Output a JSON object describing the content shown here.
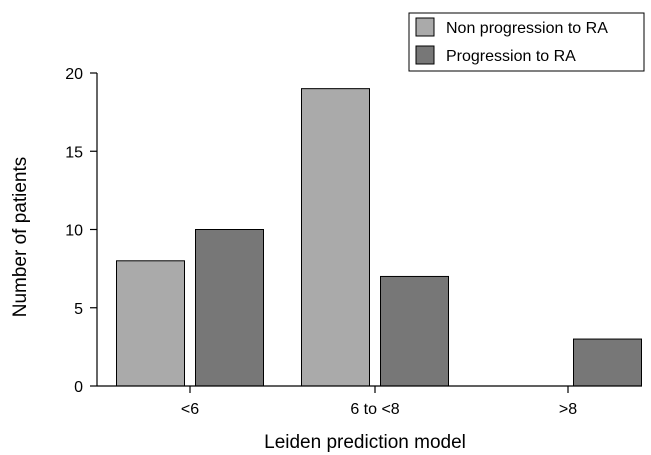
{
  "chart_data": {
    "type": "bar",
    "title": "",
    "xlabel": "Leiden prediction model",
    "ylabel": "Number of patients",
    "categories": [
      "<6",
      "6 to <8",
      ">8"
    ],
    "series": [
      {
        "name": "Non progression to RA",
        "values": [
          8,
          19,
          0
        ],
        "color": "#aaaaaa"
      },
      {
        "name": "Progression to RA",
        "values": [
          10,
          7,
          3
        ],
        "color": "#777777"
      }
    ],
    "ylim": [
      0,
      20
    ],
    "yticks": [
      0,
      5,
      10,
      15,
      20
    ],
    "grid": false,
    "legend": "top-right"
  }
}
